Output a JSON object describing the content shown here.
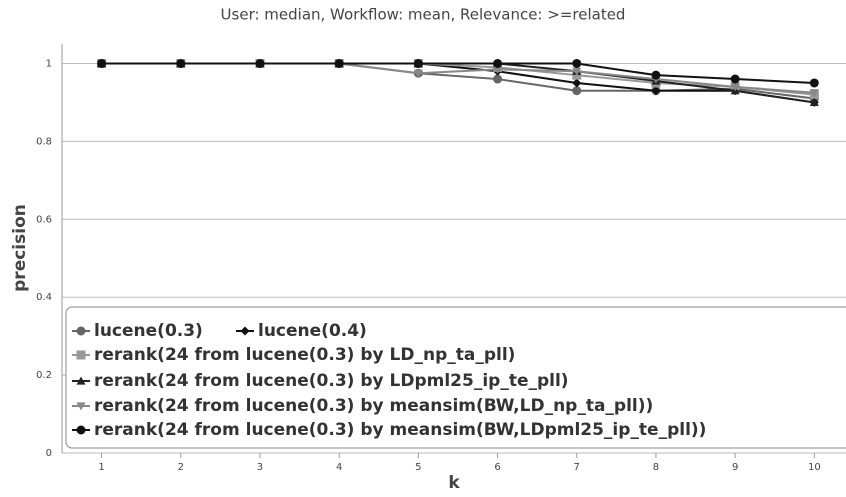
{
  "chart_data": {
    "type": "line",
    "title": "User: median, Workflow: mean, Relevance: >=related",
    "xlabel": "k",
    "ylabel": "precision",
    "x": [
      1,
      2,
      3,
      4,
      5,
      6,
      7,
      8,
      9,
      10
    ],
    "xlim": [
      0.5,
      10.4
    ],
    "xticks": [
      1,
      2,
      3,
      4,
      5,
      6,
      7,
      8,
      9,
      10
    ],
    "ylim": [
      0,
      1.05
    ],
    "yticks": [
      0,
      0.2,
      0.4,
      0.6,
      0.8,
      1
    ],
    "grid": true,
    "series": [
      {
        "name": "lucene(0.3)",
        "color": "#666666",
        "marker": "circle",
        "values": [
          1,
          1,
          1,
          1,
          0.975,
          0.96,
          0.93,
          0.93,
          0.935,
          0.91
        ]
      },
      {
        "name": "lucene(0.4)",
        "color": "#111111",
        "marker": "diamond",
        "values": [
          1,
          1,
          1,
          1,
          1,
          0.98,
          0.95,
          0.93,
          0.93,
          0.9
        ]
      },
      {
        "name": "rerank(24 from lucene(0.3) by LD_np_ta_pll)",
        "color": "#999999",
        "marker": "square",
        "values": [
          1,
          1,
          1,
          1,
          1,
          0.99,
          0.97,
          0.95,
          0.94,
          0.92
        ]
      },
      {
        "name": "rerank(24 from lucene(0.3) by LDpml25_ip_te_pll)",
        "color": "#222222",
        "marker": "triangle",
        "values": [
          1,
          1,
          1,
          1,
          1,
          1,
          0.98,
          0.955,
          0.93,
          0.9
        ]
      },
      {
        "name": "rerank(24 from lucene(0.3) by meansim(BW,LD_np_ta_pll))",
        "color": "#888888",
        "marker": "down-triangle",
        "values": [
          1,
          1,
          1,
          1,
          0.975,
          0.985,
          0.98,
          0.96,
          0.94,
          0.925
        ]
      },
      {
        "name": "rerank(24 from lucene(0.3) by meansim(BW,LDpml25_ip_te_pll))",
        "color": "#111111",
        "marker": "circle",
        "values": [
          1,
          1,
          1,
          1,
          1,
          1,
          1,
          0.97,
          0.96,
          0.95
        ]
      }
    ]
  }
}
